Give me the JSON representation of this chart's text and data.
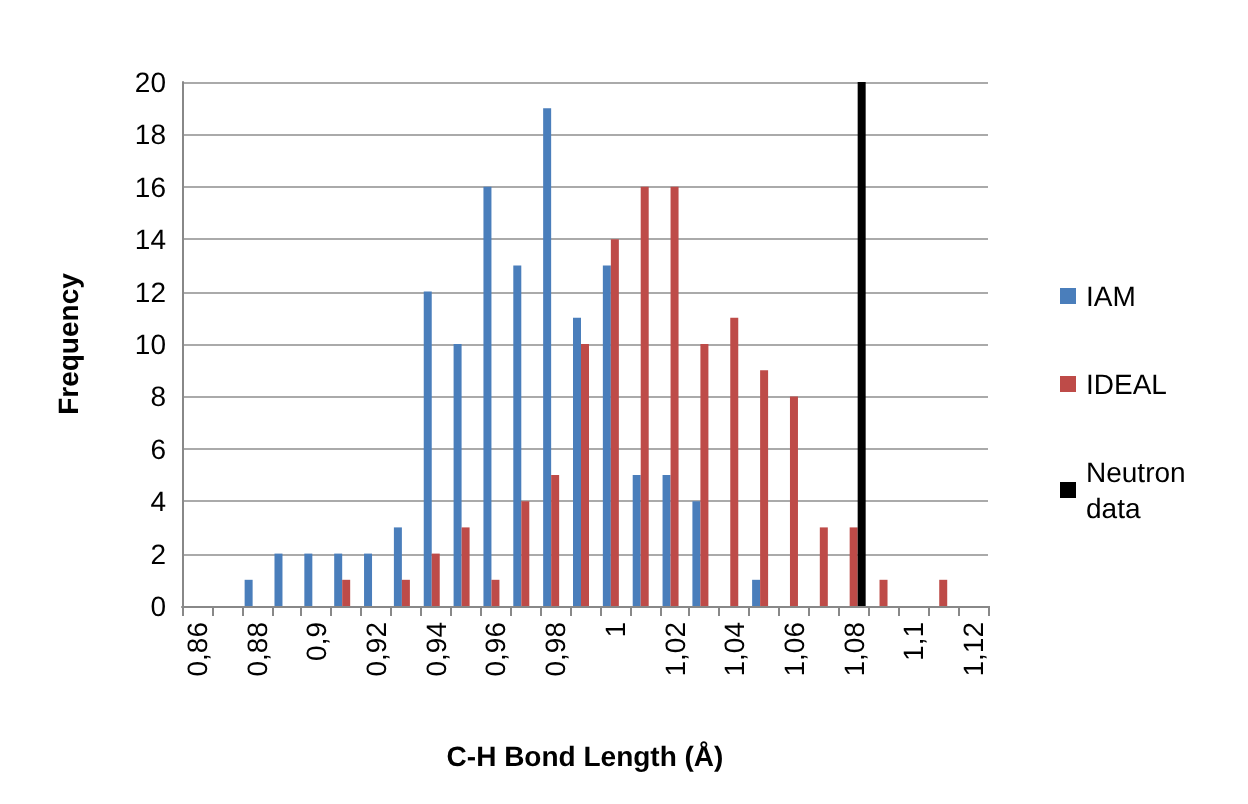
{
  "chart_data": {
    "type": "bar",
    "xlabel": "C-H Bond Length (Å)",
    "ylabel": "Frequency",
    "categories": [
      "0,86",
      null,
      "0,88",
      null,
      "0,9",
      null,
      "0,92",
      null,
      "0,94",
      null,
      "0,96",
      null,
      "0,98",
      null,
      "1",
      null,
      "1,02",
      null,
      "1,04",
      null,
      "1,06",
      null,
      "1,08",
      null,
      "1,1",
      null,
      "1,12"
    ],
    "series": [
      {
        "name": "IAM",
        "color": "#4a7ebb",
        "values": [
          0,
          0,
          1,
          2,
          2,
          2,
          2,
          3,
          12,
          10,
          16,
          13,
          19,
          11,
          13,
          5,
          5,
          4,
          0,
          1,
          0,
          0,
          0,
          0,
          0,
          0,
          0
        ]
      },
      {
        "name": "IDEAL",
        "color": "#be4b48",
        "values": [
          0,
          0,
          0,
          0,
          0,
          1,
          0,
          1,
          2,
          3,
          1,
          4,
          5,
          10,
          14,
          16,
          16,
          10,
          11,
          9,
          8,
          3,
          3,
          1,
          0,
          1,
          0
        ]
      },
      {
        "name": "Neutron data",
        "color": "#000000",
        "values": [
          null,
          null,
          null,
          null,
          null,
          null,
          null,
          null,
          null,
          null,
          null,
          null,
          null,
          null,
          null,
          null,
          null,
          null,
          null,
          null,
          null,
          null,
          20,
          null,
          null,
          null,
          null
        ]
      }
    ],
    "ylim": [
      0,
      20
    ],
    "yticks": [
      0,
      2,
      4,
      6,
      8,
      10,
      12,
      14,
      16,
      18,
      20
    ],
    "grid": "y",
    "legend": "right"
  }
}
